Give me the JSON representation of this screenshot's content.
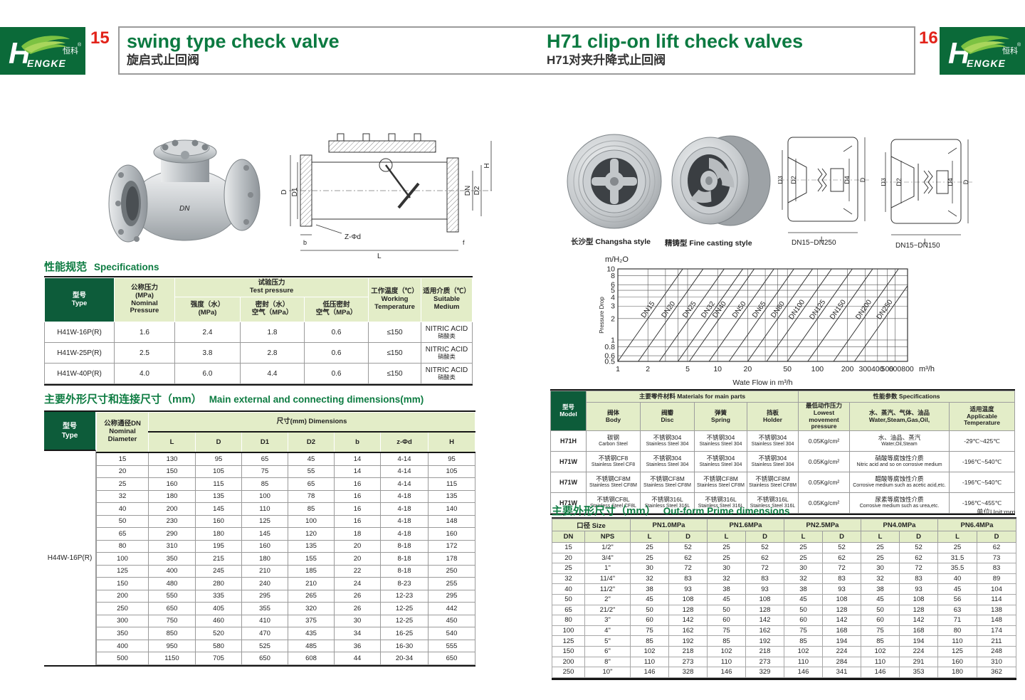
{
  "header": {
    "left_page_number": "15",
    "right_page_number": "16",
    "left_title_en": "swing type check valve",
    "left_title_zh": "旋启式止回阀",
    "right_title_en": "H71 clip-on lift check valves",
    "right_title_zh": "H71对夹升降式止回阀",
    "logo": {
      "h": "H",
      "rest": "ENGKE",
      "zh": "恒科",
      "reg": "®"
    },
    "accent_green": "#0b6a39",
    "accent_red": "#e2231a"
  },
  "left_page": {
    "spec_section_zh": "性能规范",
    "spec_section_en": "Specifications",
    "spec_table": {
      "type_l1": "型号",
      "type_l2": "Type",
      "nominal_l1": "公称压力",
      "nominal_l2": "(MPa)",
      "nominal_l3": "Nominal",
      "nominal_l4": "Pressure",
      "test_l1": "试验压力",
      "test_l2": "Test pressure",
      "strength_l1": "强度（水）",
      "strength_l2": "(MPa)",
      "seal_l1": "密封（水）",
      "seal_l2": "空气（MPa）",
      "lowseal_l1": "低压密封",
      "lowseal_l2": "空气（MPa）",
      "working_l1": "工作温度（℃）",
      "working_l2": "Working",
      "working_l3": "Temperature",
      "medium_l1": "适用介质（℃）",
      "medium_l2": "Suitable",
      "medium_l3": "Medium",
      "rows": [
        [
          "H41W-16P(R)",
          "1.6",
          "2.4",
          "1.8",
          "0.6",
          "≤150",
          [
            "NITRIC ACID",
            "硝酸类"
          ]
        ],
        [
          "H41W-25P(R)",
          "2.5",
          "3.8",
          "2.8",
          "0.6",
          "≤150",
          [
            "NITRIC ACID",
            "硝酸类"
          ]
        ],
        [
          "H41W-40P(R)",
          "4.0",
          "6.0",
          "4.4",
          "0.6",
          "≤150",
          [
            "NITRIC ACID",
            "硝酸类"
          ]
        ]
      ]
    },
    "dims_section_zh": "主要外形尺寸和连接尺寸（mm）",
    "dims_section_en": "Main external and connecting dimensions(mm)",
    "dims_table": {
      "type_l1": "型号",
      "type_l2": "Type",
      "type_value": "H44W-16P(R)",
      "dn_l1": "公称通径DN",
      "dn_l2": "Nominal",
      "dn_l3": "Diameter",
      "group": "尺寸(mm) Dimensions",
      "columns": [
        "L",
        "D",
        "D1",
        "D2",
        "b",
        "z-Φd",
        "H"
      ],
      "rows": [
        [
          "15",
          "130",
          "95",
          "65",
          "45",
          "14",
          "4-14",
          "95"
        ],
        [
          "20",
          "150",
          "105",
          "75",
          "55",
          "14",
          "4-14",
          "105"
        ],
        [
          "25",
          "160",
          "115",
          "85",
          "65",
          "16",
          "4-14",
          "115"
        ],
        [
          "32",
          "180",
          "135",
          "100",
          "78",
          "16",
          "4-18",
          "135"
        ],
        [
          "40",
          "200",
          "145",
          "110",
          "85",
          "16",
          "4-18",
          "140"
        ],
        [
          "50",
          "230",
          "160",
          "125",
          "100",
          "16",
          "4-18",
          "148"
        ],
        [
          "65",
          "290",
          "180",
          "145",
          "120",
          "18",
          "4-18",
          "160"
        ],
        [
          "80",
          "310",
          "195",
          "160",
          "135",
          "20",
          "8-18",
          "172"
        ],
        [
          "100",
          "350",
          "215",
          "180",
          "155",
          "20",
          "8-18",
          "178"
        ],
        [
          "125",
          "400",
          "245",
          "210",
          "185",
          "22",
          "8-18",
          "250"
        ],
        [
          "150",
          "480",
          "280",
          "240",
          "210",
          "24",
          "8-23",
          "255"
        ],
        [
          "200",
          "550",
          "335",
          "295",
          "265",
          "26",
          "12-23",
          "295"
        ],
        [
          "250",
          "650",
          "405",
          "355",
          "320",
          "26",
          "12-25",
          "442"
        ],
        [
          "300",
          "750",
          "460",
          "410",
          "375",
          "30",
          "12-25",
          "450"
        ],
        [
          "350",
          "850",
          "520",
          "470",
          "435",
          "34",
          "16-25",
          "540"
        ],
        [
          "400",
          "950",
          "580",
          "525",
          "485",
          "36",
          "16-30",
          "555"
        ],
        [
          "500",
          "1150",
          "705",
          "650",
          "608",
          "44",
          "20-34",
          "650"
        ]
      ]
    },
    "drawing": {
      "d": "D",
      "d1": "D1",
      "dn": "DN",
      "d2": "D2",
      "h": "H",
      "l": "L",
      "b": "b",
      "f": "f",
      "zfd": "Z-Φd"
    }
  },
  "right_page": {
    "captions": {
      "photo1": "长沙型 Changsha style",
      "photo2": "精铸型 Fine casting style",
      "drawing1": "DN15~DN250",
      "drawing2": "DN15~DN150"
    },
    "wafer_drawing": {
      "d3": "D3",
      "d2": "D2",
      "d4": "D4",
      "d": "D",
      "l": "L"
    },
    "materials_table": {
      "model_l1": "型号",
      "model_l2": "Model",
      "materials_group": "主要零件材料 Materials for main parts",
      "specs_group": "性能参数 Specifications",
      "body_l1": "阀体",
      "body_l2": "Body",
      "disc_l1": "阀瓣",
      "disc_l2": "Disc",
      "spring_l1": "弹簧",
      "spring_l2": "Spring",
      "holder_l1": "挡板",
      "holder_l2": "Holder",
      "pressure_l1": "最低动作压力",
      "pressure_l2": "Lowest movement",
      "pressure_l3": "pressure",
      "medium_l1": "水、蒸汽、气体、油品",
      "medium_l2": "Water,Steam,Gas,Oil,",
      "temp_l1": "适用温度",
      "temp_l2": "Applicable",
      "temp_l3": "Temperature",
      "rows": [
        [
          "H71H",
          [
            "碳钢",
            "Carbon Steel"
          ],
          [
            "不锈钢304",
            "Stainless Steel 304"
          ],
          [
            "不锈钢304",
            "Stainless Steel 304"
          ],
          [
            "不锈钢304",
            "Stainless Steel 304"
          ],
          "0.05Kg/cm²",
          [
            "水、油品、蒸汽",
            "Water,Oil,Steam"
          ],
          "-29℃~425℃"
        ],
        [
          "H71W",
          [
            "不锈钢CF8",
            "Stainless Steel CF8"
          ],
          [
            "不锈钢304",
            "Stainless Steel 304"
          ],
          [
            "不锈钢304",
            "Stainless Steel 304"
          ],
          [
            "不锈钢304",
            "Stainless Steel 304"
          ],
          "0.05Kg/cm²",
          [
            "硝酸等腐蚀性介质",
            "Nitric acid and so on corrosive medium"
          ],
          "-196℃~540℃"
        ],
        [
          "H71W",
          [
            "不锈钢CF8M",
            "Stainless Steel CF8M"
          ],
          [
            "不锈钢CF8M",
            "Stainless Steel CF8M"
          ],
          [
            "不锈钢CF8M",
            "Stainless Steel CF8M"
          ],
          [
            "不锈钢CF8M",
            "Stainless Steel CF8M"
          ],
          "0.05Kg/cm²",
          [
            "醋酸等腐蚀性介质",
            "Corrosive medium such as acetic acid,etc."
          ],
          "-196℃~540℃"
        ],
        [
          "H71W",
          [
            "不锈钢CF8L",
            "Stainless Steel CF8L"
          ],
          [
            "不锈钢316L",
            "Stainless Steel 316L"
          ],
          [
            "不锈钢316L",
            "Stainless Steel 316L"
          ],
          [
            "不锈钢316L",
            "Stainless Steel 316L"
          ],
          "0.05Kg/cm²",
          [
            "尿素等腐蚀性介质",
            "Corrosive medium such as urea,etc."
          ],
          "-196℃~455℃"
        ]
      ]
    },
    "outform_section_zh": "主要外形尺寸（mm）",
    "outform_section_en": "Out-form Prime dimensions",
    "unit_note": "单位Unit:mm",
    "outform_table": {
      "size_group": "口径 Size",
      "dn": "DN",
      "nps": "NPS",
      "pn_groups": [
        "PN1.0MPa",
        "PN1.6MPa",
        "PN2.5MPa",
        "PN4.0MPa",
        "PN6.4MPa"
      ],
      "sub_l": "L",
      "sub_d": "D",
      "rows": [
        [
          "15",
          "1/2\"",
          "25",
          "52",
          "25",
          "52",
          "25",
          "52",
          "25",
          "52",
          "25",
          "62"
        ],
        [
          "20",
          "3/4\"",
          "25",
          "62",
          "25",
          "62",
          "25",
          "62",
          "25",
          "62",
          "31.5",
          "73"
        ],
        [
          "25",
          "1\"",
          "30",
          "72",
          "30",
          "72",
          "30",
          "72",
          "30",
          "72",
          "35.5",
          "83"
        ],
        [
          "32",
          "11/4\"",
          "32",
          "83",
          "32",
          "83",
          "32",
          "83",
          "32",
          "83",
          "40",
          "89"
        ],
        [
          "40",
          "11/2\"",
          "38",
          "93",
          "38",
          "93",
          "38",
          "93",
          "38",
          "93",
          "45",
          "104"
        ],
        [
          "50",
          "2\"",
          "45",
          "108",
          "45",
          "108",
          "45",
          "108",
          "45",
          "108",
          "56",
          "114"
        ],
        [
          "65",
          "21/2\"",
          "50",
          "128",
          "50",
          "128",
          "50",
          "128",
          "50",
          "128",
          "63",
          "138"
        ],
        [
          "80",
          "3\"",
          "60",
          "142",
          "60",
          "142",
          "60",
          "142",
          "60",
          "142",
          "71",
          "148"
        ],
        [
          "100",
          "4\"",
          "75",
          "162",
          "75",
          "162",
          "75",
          "168",
          "75",
          "168",
          "80",
          "174"
        ],
        [
          "125",
          "5\"",
          "85",
          "192",
          "85",
          "192",
          "85",
          "194",
          "85",
          "194",
          "110",
          "211"
        ],
        [
          "150",
          "6\"",
          "102",
          "218",
          "102",
          "218",
          "102",
          "224",
          "102",
          "224",
          "125",
          "248"
        ],
        [
          "200",
          "8\"",
          "110",
          "273",
          "110",
          "273",
          "110",
          "284",
          "110",
          "291",
          "160",
          "310"
        ],
        [
          "250",
          "10\"",
          "146",
          "328",
          "146",
          "329",
          "146",
          "341",
          "146",
          "353",
          "180",
          "362"
        ]
      ]
    }
  },
  "chart_data": {
    "type": "line",
    "title": "",
    "ylabel": "Pressure Drop",
    "y_axis_unit": "m/H₂O",
    "xlabel": "Wate Flow in m³/h",
    "x_axis_unit": "m³/h",
    "x_scale": "log",
    "y_scale": "log",
    "xlim": [
      1,
      800
    ],
    "ylim": [
      0.5,
      10
    ],
    "x_ticks": [
      1,
      2,
      5,
      10,
      20,
      50,
      100,
      200,
      300,
      400,
      500,
      600,
      800
    ],
    "y_ticks": [
      0.5,
      0.6,
      0.8,
      1,
      2,
      3,
      4,
      5,
      6,
      8,
      10
    ],
    "x_gridlines": [
      1,
      2,
      3,
      4,
      5,
      10,
      20,
      30,
      40,
      50,
      100,
      200,
      300,
      400,
      500,
      600,
      800
    ],
    "slope_log_log": 2,
    "grid": true,
    "series": [
      {
        "name": "DN15",
        "flow_at_pd_0_5": 1.0
      },
      {
        "name": "DN20",
        "flow_at_pd_0_5": 1.6
      },
      {
        "name": "DN25",
        "flow_at_pd_0_5": 2.6
      },
      {
        "name": "DN32",
        "flow_at_pd_0_5": 4.0
      },
      {
        "name": "DN40",
        "flow_at_pd_0_5": 5.2
      },
      {
        "name": "DN50",
        "flow_at_pd_0_5": 8.2
      },
      {
        "name": "DN65",
        "flow_at_pd_0_5": 13
      },
      {
        "name": "DN80",
        "flow_at_pd_0_5": 20
      },
      {
        "name": "DN100",
        "flow_at_pd_0_5": 31
      },
      {
        "name": "DN125",
        "flow_at_pd_0_5": 50
      },
      {
        "name": "DN150",
        "flow_at_pd_0_5": 80
      },
      {
        "name": "DN200",
        "flow_at_pd_0_5": 145
      },
      {
        "name": "DN250",
        "flow_at_pd_0_5": 235
      }
    ]
  }
}
